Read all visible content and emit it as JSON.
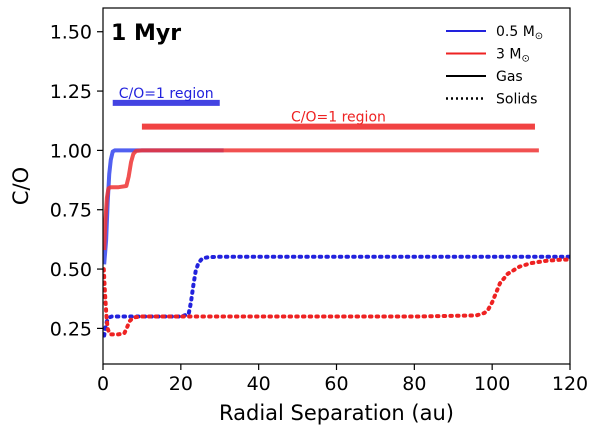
{
  "chart_data": {
    "type": "line",
    "title": "1 Myr",
    "xlabel": "Radial Separation (au)",
    "ylabel": "C/O",
    "xlim": [
      0,
      120
    ],
    "ylim": [
      0.1,
      1.6
    ],
    "x_ticks": [
      0,
      20,
      40,
      60,
      80,
      100,
      120
    ],
    "y_ticks": [
      0.25,
      0.5,
      0.75,
      1.0,
      1.25,
      1.5
    ],
    "x_tick_labels": [
      "0",
      "20",
      "40",
      "60",
      "80",
      "100",
      "120"
    ],
    "y_tick_labels": [
      "0.25",
      "0.50",
      "0.75",
      "1.00",
      "1.25",
      "1.50"
    ],
    "grid": false,
    "legend_position": "top-right",
    "legend": [
      {
        "label": "0.5 M",
        "sub": "⊙",
        "color": "#2222dd",
        "style": "solid"
      },
      {
        "label": "3 M",
        "sub": "⊙",
        "color": "#ee2222",
        "style": "solid"
      },
      {
        "label": "Gas",
        "color": "#000000",
        "style": "solid"
      },
      {
        "label": "Solids",
        "color": "#000000",
        "style": "dotted"
      }
    ],
    "series": [
      {
        "name": "0.5 M⊙ Gas",
        "color": "#3344ee",
        "style": "solid",
        "x": [
          0.3,
          0.8,
          1.2,
          1.6,
          2.0,
          2.5,
          3,
          10,
          20,
          31
        ],
        "y": [
          0.52,
          0.62,
          0.78,
          0.9,
          0.96,
          0.995,
          1.0,
          1.0,
          1.0,
          1.0
        ]
      },
      {
        "name": "3 M⊙ Gas",
        "color": "#ee3333",
        "style": "solid",
        "x": [
          0.3,
          0.6,
          1.0,
          1.4,
          2,
          4,
          6,
          6.6,
          7.2,
          7.8,
          8.5,
          10,
          20,
          40,
          80,
          112
        ],
        "y": [
          0.58,
          0.7,
          0.8,
          0.84,
          0.845,
          0.845,
          0.85,
          0.89,
          0.95,
          0.985,
          0.998,
          1.0,
          1.0,
          1.0,
          1.0,
          1.0
        ]
      },
      {
        "name": "0.5 M⊙ Solids",
        "color": "#2222dd",
        "style": "dotted",
        "x": [
          0.3,
          0.6,
          1.0,
          1.5,
          2.2,
          5,
          10,
          20,
          22,
          22.6,
          23.2,
          23.8,
          24.5,
          25.5,
          27,
          30,
          40,
          60,
          80,
          100,
          120
        ],
        "y": [
          0.22,
          0.25,
          0.28,
          0.295,
          0.3,
          0.3,
          0.3,
          0.3,
          0.31,
          0.36,
          0.43,
          0.49,
          0.525,
          0.545,
          0.55,
          0.552,
          0.552,
          0.552,
          0.552,
          0.552,
          0.552
        ]
      },
      {
        "name": "3 M⊙ Solids",
        "color": "#ee2222",
        "style": "dotted",
        "x": [
          0.2,
          0.5,
          0.9,
          1.2,
          1.6,
          2,
          4,
          5.5,
          6.2,
          6.8,
          7.4,
          8.2,
          10,
          20,
          40,
          60,
          80,
          96,
          98,
          99,
          100,
          101,
          102,
          104,
          107,
          110,
          114,
          118,
          120
        ],
        "y": [
          0.5,
          0.4,
          0.3,
          0.25,
          0.23,
          0.225,
          0.225,
          0.23,
          0.255,
          0.28,
          0.29,
          0.297,
          0.3,
          0.3,
          0.3,
          0.3,
          0.3,
          0.305,
          0.315,
          0.33,
          0.36,
          0.4,
          0.44,
          0.48,
          0.51,
          0.525,
          0.535,
          0.54,
          0.54
        ]
      }
    ],
    "annotations": [
      {
        "text": "C/O=1 region",
        "color": "#2222dd",
        "x_start": 2.5,
        "x_end": 30,
        "y": 1.2
      },
      {
        "text": "C/O=1 region",
        "color": "#ee2222",
        "x_start": 10,
        "x_end": 111,
        "y": 1.1
      }
    ]
  }
}
